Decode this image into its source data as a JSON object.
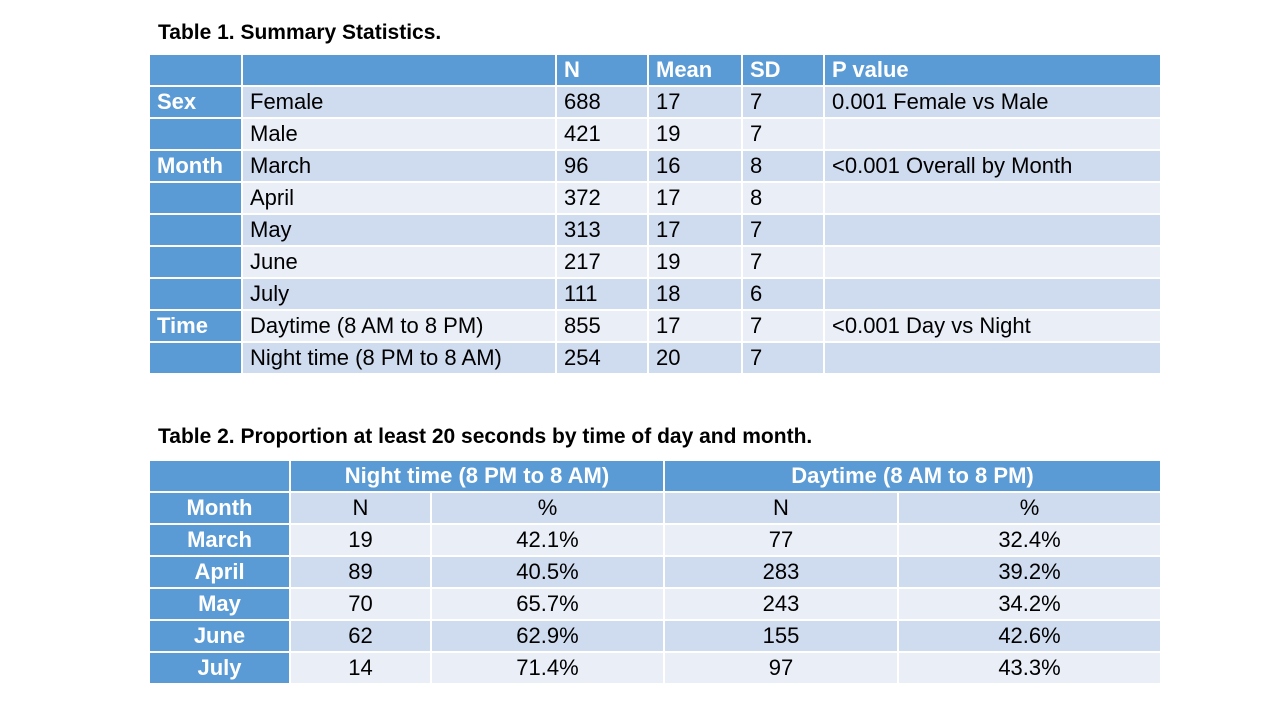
{
  "table1": {
    "caption": "Table 1. Summary Statistics.",
    "headers": [
      "",
      "",
      "N",
      "Mean",
      "SD",
      "P value"
    ],
    "rows": [
      {
        "group": "Sex",
        "label": "Female",
        "n": "688",
        "mean": "17",
        "sd": "7",
        "p": "0.001 Female vs Male"
      },
      {
        "group": "",
        "label": "Male",
        "n": "421",
        "mean": "19",
        "sd": "7",
        "p": ""
      },
      {
        "group": "Month",
        "label": "March",
        "n": "96",
        "mean": "16",
        "sd": "8",
        "p": "<0.001 Overall by Month"
      },
      {
        "group": "",
        "label": "April",
        "n": "372",
        "mean": "17",
        "sd": "8",
        "p": ""
      },
      {
        "group": "",
        "label": "May",
        "n": "313",
        "mean": "17",
        "sd": "7",
        "p": ""
      },
      {
        "group": "",
        "label": "June",
        "n": "217",
        "mean": "19",
        "sd": "7",
        "p": ""
      },
      {
        "group": "",
        "label": "July",
        "n": "111",
        "mean": "18",
        "sd": "6",
        "p": ""
      },
      {
        "group": "Time",
        "label": "Daytime (8 AM to 8 PM)",
        "n": "855",
        "mean": "17",
        "sd": "7",
        "p": "<0.001 Day vs Night"
      },
      {
        "group": "",
        "label": "Night time (8 PM to 8 AM)",
        "n": "254",
        "mean": "20",
        "sd": "7",
        "p": ""
      }
    ]
  },
  "table2": {
    "caption": "Table 2. Proportion at least 20 seconds by time of day and month.",
    "group_headers": [
      "Night time (8 PM to 8 AM)",
      "Daytime (8 AM to 8 PM)"
    ],
    "sub_headers": [
      "Month",
      "N",
      "%",
      "N",
      "%"
    ],
    "rows": [
      {
        "month": "March",
        "night_n": "19",
        "night_pct": "42.1%",
        "day_n": "77",
        "day_pct": "32.4%"
      },
      {
        "month": "April",
        "night_n": "89",
        "night_pct": "40.5%",
        "day_n": "283",
        "day_pct": "39.2%"
      },
      {
        "month": "May",
        "night_n": "70",
        "night_pct": "65.7%",
        "day_n": "243",
        "day_pct": "34.2%"
      },
      {
        "month": "June",
        "night_n": "62",
        "night_pct": "62.9%",
        "day_n": "155",
        "day_pct": "42.6%"
      },
      {
        "month": "July",
        "night_n": "14",
        "night_pct": "71.4%",
        "day_n": "97",
        "day_pct": "43.3%"
      }
    ]
  },
  "colors": {
    "header": "#5b9bd5",
    "row_dark": "#cfdbee",
    "row_light": "#e9eef7"
  }
}
